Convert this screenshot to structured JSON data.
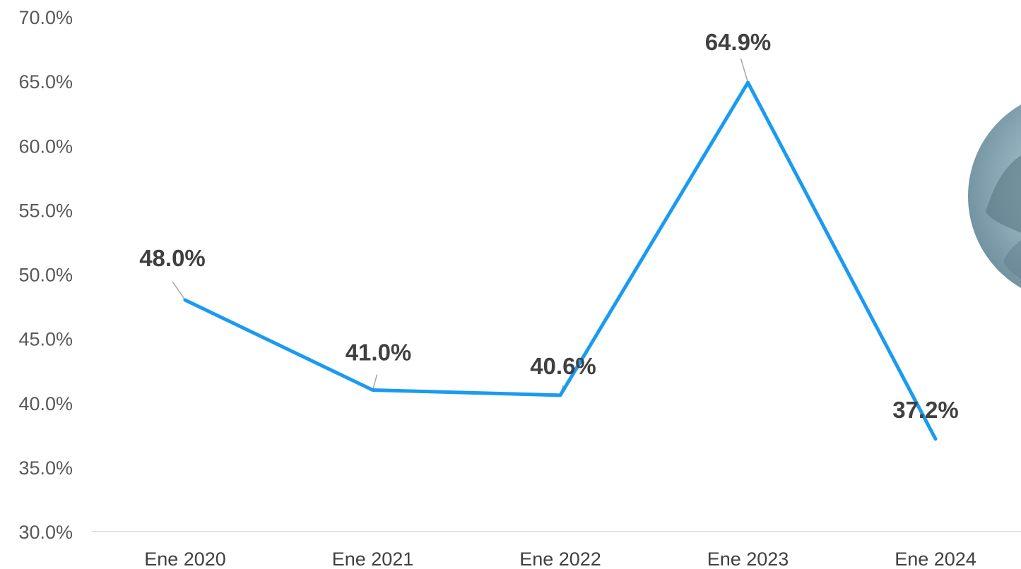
{
  "chart_data": {
    "type": "line",
    "categories": [
      "Ene 2020",
      "Ene 2021",
      "Ene 2022",
      "Ene 2023",
      "Ene 2024"
    ],
    "series": [
      {
        "values": [
          48.0,
          41.0,
          40.6,
          64.9,
          37.2
        ],
        "labels": [
          "48.0%",
          "41.0%",
          "40.6%",
          "64.9%",
          "37.2%"
        ],
        "color": "#1a9bf0"
      }
    ],
    "y_ticks": [
      "30.0%",
      "35.0%",
      "40.0%",
      "45.0%",
      "50.0%",
      "55.0%",
      "60.0%",
      "65.0%",
      "70.0%"
    ],
    "ylim": [
      30,
      70
    ],
    "title": "",
    "xlabel": "",
    "ylabel": "",
    "grid": false,
    "legend": "none"
  },
  "colors": {
    "axis_line": "#d9d9d9",
    "leader_line": "#a6a6a6",
    "decor_circle": "#8fb0bd"
  }
}
